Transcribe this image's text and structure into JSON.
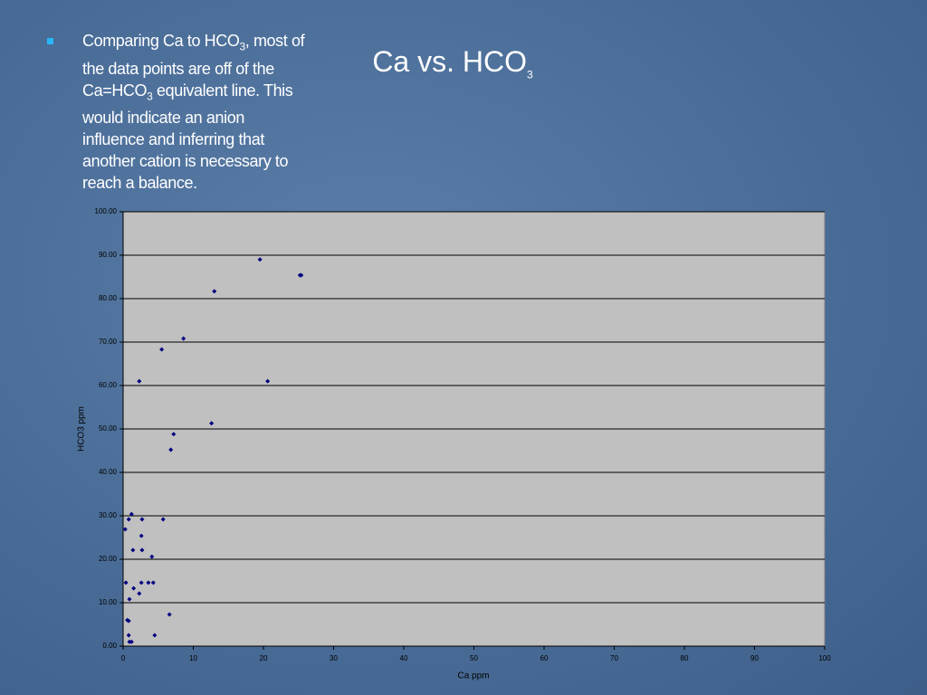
{
  "slide": {
    "title": [
      "Ca vs. HCO",
      "3"
    ],
    "bullet": [
      "Comparing Ca to HCO",
      "3",
      ", most of the data points are off of the Ca=HCO",
      "3",
      " equivalent line.  This would indicate an anion influence and inferring that another cation is necessary to reach a balance."
    ]
  },
  "chart_data": {
    "type": "scatter",
    "x_label": "Ca ppm",
    "y_label": "HCO3 ppm",
    "color": "#000080",
    "xlim": [
      0,
      100
    ],
    "ylim": [
      0,
      100
    ],
    "xticks": [
      0,
      10,
      20,
      30,
      40,
      50,
      60,
      70,
      80,
      90,
      100
    ],
    "yticks": [
      {
        "value": 0,
        "label": "0.00"
      },
      {
        "value": 10,
        "label": "10.00"
      },
      {
        "value": 20,
        "label": "20.00"
      },
      {
        "value": 30,
        "label": "30.00"
      },
      {
        "value": 40,
        "label": "40.00"
      },
      {
        "value": 50,
        "label": "50.00"
      },
      {
        "value": 60,
        "label": "60.00"
      },
      {
        "value": 70,
        "label": "70.00"
      },
      {
        "value": 80,
        "label": "80.00"
      },
      {
        "value": 90,
        "label": "90.00"
      },
      {
        "value": 100,
        "label": "100.00"
      }
    ],
    "grid": true,
    "x": [
      0.4,
      0.3,
      0.8,
      1.2,
      0.6,
      0.8,
      0.8,
      0.9,
      1.2,
      0.9,
      1.5,
      1.4,
      2.3,
      2.6,
      2.6,
      2.7,
      2.7,
      2.3,
      3.6,
      4.3,
      4.1,
      4.5,
      5.7,
      5.5,
      6.6,
      6.8,
      7.2,
      8.6,
      12.6,
      13.0,
      19.5,
      20.6,
      25.2,
      25.4
    ],
    "values": [
      14.6,
      26.9,
      29.2,
      30.4,
      6.0,
      5.8,
      2.5,
      1.0,
      1.0,
      10.8,
      13.3,
      22.1,
      12.1,
      14.6,
      25.4,
      29.2,
      22.1,
      61.0,
      14.6,
      14.6,
      20.6,
      2.5,
      29.2,
      68.3,
      7.3,
      45.2,
      48.8,
      70.8,
      51.3,
      81.7,
      89.0,
      61.0,
      85.4,
      85.4
    ]
  }
}
